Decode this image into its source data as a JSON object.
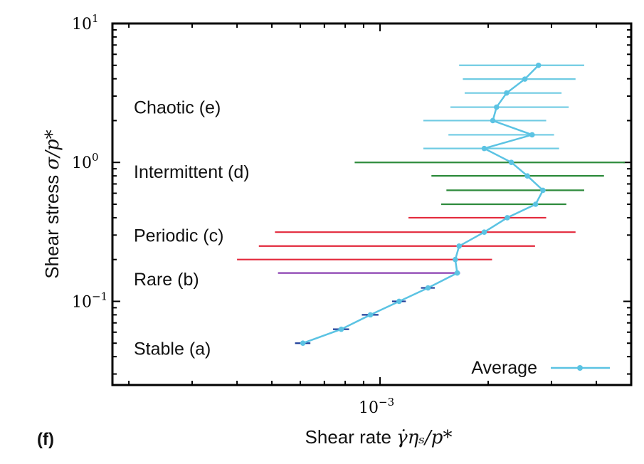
{
  "panel_label": "(f)",
  "chart_data": {
    "type": "scatter",
    "x_scale": "log",
    "y_scale": "log",
    "xlim": [
      0.00018,
      0.005
    ],
    "ylim": [
      0.025,
      10
    ],
    "xlabel_text": "Shear rate ",
    "xlabel_math": "γ̇ηₛ/p*",
    "ylabel_text": "Shear stress ",
    "ylabel_math": "σ/p*",
    "y_ticks": [
      {
        "value": 10,
        "base": "10",
        "exp": "1"
      },
      {
        "value": 1,
        "base": "10",
        "exp": "0"
      },
      {
        "value": 0.1,
        "base": "10",
        "exp": "−1"
      }
    ],
    "x_ticks": [
      {
        "value": 0.001,
        "base": "10",
        "exp": "−3"
      }
    ],
    "region_labels": [
      {
        "text": "Chaotic (e)",
        "y": 2.5
      },
      {
        "text": "Intermittent (d)",
        "y": 0.86
      },
      {
        "text": "Periodic (c)",
        "y": 0.3
      },
      {
        "text": "Rare (b)",
        "y": 0.145
      },
      {
        "text": "Stable (a)",
        "y": 0.046
      }
    ],
    "legend": {
      "label": "Average",
      "position": "bottom-right"
    },
    "colors": {
      "average": "#5bc3e3",
      "stable": "#1e3f9a",
      "rare": "#8a3fb0",
      "periodic": "#e3283b",
      "intermittent": "#2e8b3c",
      "chaotic": "#6fcbe3",
      "frame": "#000000"
    },
    "series": [
      {
        "name": "Average",
        "points": [
          {
            "x": 0.00061,
            "y": 0.05,
            "xmin": 0.00058,
            "xmax": 0.00064,
            "regime": "stable"
          },
          {
            "x": 0.00078,
            "y": 0.063,
            "xmin": 0.00074,
            "xmax": 0.00082,
            "regime": "stable"
          },
          {
            "x": 0.00094,
            "y": 0.08,
            "xmin": 0.00089,
            "xmax": 0.00099,
            "regime": "stable"
          },
          {
            "x": 0.00113,
            "y": 0.1,
            "xmin": 0.00108,
            "xmax": 0.00118,
            "regime": "stable"
          },
          {
            "x": 0.00136,
            "y": 0.125,
            "xmin": 0.0013,
            "xmax": 0.00142,
            "regime": "stable"
          },
          {
            "x": 0.00164,
            "y": 0.16,
            "xmin": 0.00052,
            "xmax": 0.00167,
            "regime": "rare"
          },
          {
            "x": 0.00162,
            "y": 0.2,
            "xmin": 0.0004,
            "xmax": 0.00205,
            "regime": "periodic"
          },
          {
            "x": 0.00166,
            "y": 0.25,
            "xmin": 0.00046,
            "xmax": 0.0027,
            "regime": "periodic"
          },
          {
            "x": 0.00195,
            "y": 0.315,
            "xmin": 0.00051,
            "xmax": 0.0035,
            "regime": "periodic"
          },
          {
            "x": 0.00226,
            "y": 0.4,
            "xmin": 0.0012,
            "xmax": 0.0029,
            "regime": "periodic"
          },
          {
            "x": 0.00271,
            "y": 0.5,
            "xmin": 0.00148,
            "xmax": 0.0033,
            "regime": "intermittent"
          },
          {
            "x": 0.00284,
            "y": 0.63,
            "xmin": 0.00153,
            "xmax": 0.0037,
            "regime": "intermittent"
          },
          {
            "x": 0.00257,
            "y": 0.8,
            "xmin": 0.00139,
            "xmax": 0.0042,
            "regime": "intermittent"
          },
          {
            "x": 0.00232,
            "y": 1.0,
            "xmin": 0.00085,
            "xmax": 0.0048,
            "regime": "intermittent"
          },
          {
            "x": 0.00195,
            "y": 1.26,
            "xmin": 0.00132,
            "xmax": 0.00315,
            "regime": "chaotic"
          },
          {
            "x": 0.00265,
            "y": 1.58,
            "xmin": 0.00155,
            "xmax": 0.00305,
            "regime": "chaotic"
          },
          {
            "x": 0.00206,
            "y": 2.0,
            "xmin": 0.00132,
            "xmax": 0.0029,
            "regime": "chaotic"
          },
          {
            "x": 0.00211,
            "y": 2.5,
            "xmin": 0.00157,
            "xmax": 0.00335,
            "regime": "chaotic"
          },
          {
            "x": 0.00225,
            "y": 3.16,
            "xmin": 0.00172,
            "xmax": 0.0032,
            "regime": "chaotic"
          },
          {
            "x": 0.00253,
            "y": 3.98,
            "xmin": 0.0017,
            "xmax": 0.0035,
            "regime": "chaotic"
          },
          {
            "x": 0.00276,
            "y": 5.0,
            "xmin": 0.00166,
            "xmax": 0.0037,
            "regime": "chaotic"
          }
        ]
      }
    ]
  }
}
